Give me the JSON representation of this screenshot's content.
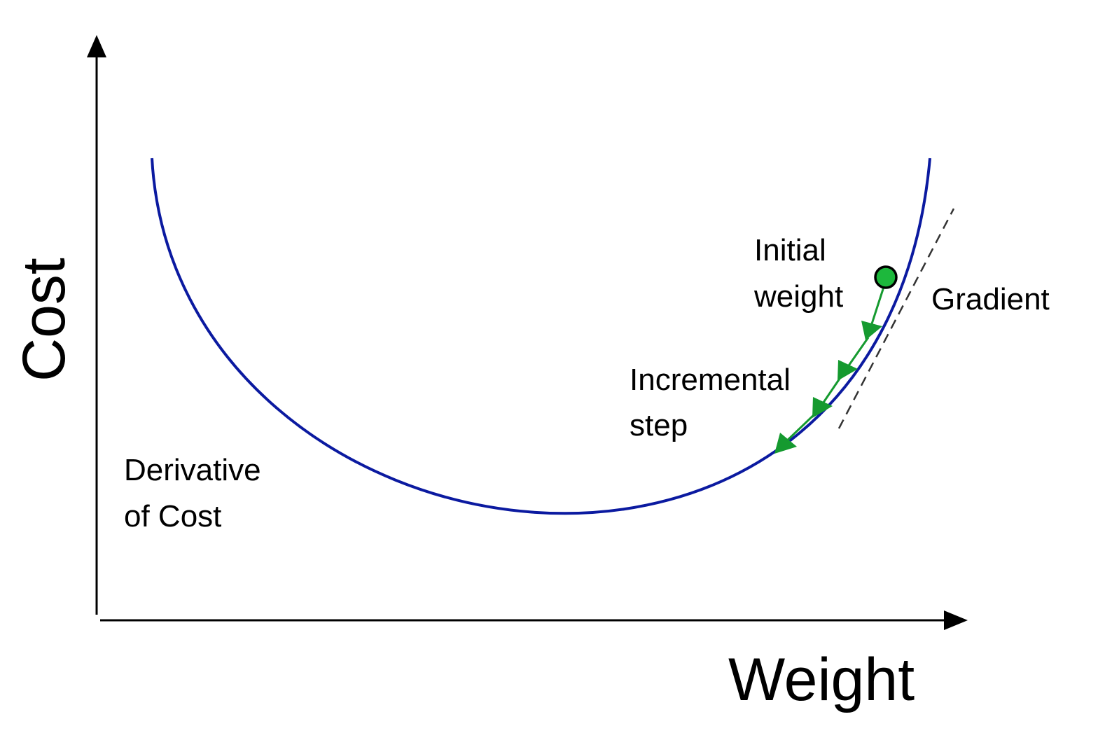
{
  "axes": {
    "y_label": "Cost",
    "x_label": "Weight"
  },
  "annotations": {
    "curve_label": [
      "Derivative",
      "of Cost"
    ],
    "point_label": [
      "Initial",
      "weight"
    ],
    "step_label": [
      "Incremental",
      "step"
    ],
    "tangent_label": "Gradient"
  },
  "colors": {
    "curve": "#0b1aa0",
    "step_arrows": "#159a2f",
    "initial_point": "#1db83c",
    "axes": "#000000",
    "tangent": "#333333"
  }
}
